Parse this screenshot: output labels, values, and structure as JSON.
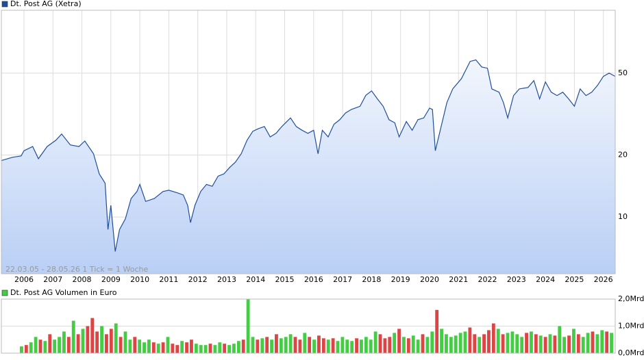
{
  "chart_data": [
    {
      "type": "line",
      "title": "Dt. Post AG (Xetra)",
      "legend_color": "#1f4e9c",
      "color": "#1f4e9c",
      "annotation": "22.03.05 - 28.05.26   1 Tick = 1 Woche",
      "log": true,
      "grid": true,
      "xlim": [
        2005.22,
        2026.41
      ],
      "xticks": [
        2006,
        2007,
        2008,
        2009,
        2010,
        2011,
        2012,
        2013,
        2014,
        2015,
        2016,
        2017,
        2018,
        2019,
        2020,
        2021,
        2022,
        2023,
        2024,
        2025,
        2026
      ],
      "ylim": [
        5.3,
        101
      ],
      "yticks": [
        10,
        20,
        50
      ],
      "x": [
        2005.22,
        2005.6,
        2005.9,
        2006.0,
        2006.3,
        2006.5,
        2006.8,
        2007.1,
        2007.3,
        2007.6,
        2007.9,
        2008.1,
        2008.4,
        2008.6,
        2008.8,
        2008.9,
        2009.0,
        2009.15,
        2009.3,
        2009.5,
        2009.7,
        2009.9,
        2010.0,
        2010.2,
        2010.5,
        2010.8,
        2011.0,
        2011.3,
        2011.5,
        2011.65,
        2011.75,
        2011.9,
        2012.1,
        2012.3,
        2012.5,
        2012.7,
        2012.9,
        2013.1,
        2013.3,
        2013.5,
        2013.7,
        2013.9,
        2014.1,
        2014.3,
        2014.5,
        2014.7,
        2014.9,
        2015.2,
        2015.4,
        2015.6,
        2015.8,
        2016.0,
        2016.15,
        2016.3,
        2016.5,
        2016.7,
        2016.9,
        2017.1,
        2017.3,
        2017.6,
        2017.8,
        2018.0,
        2018.2,
        2018.4,
        2018.6,
        2018.8,
        2018.95,
        2019.2,
        2019.4,
        2019.6,
        2019.8,
        2020.0,
        2020.1,
        2020.2,
        2020.4,
        2020.6,
        2020.8,
        2021.1,
        2021.4,
        2021.6,
        2021.8,
        2022.0,
        2022.15,
        2022.4,
        2022.55,
        2022.7,
        2022.9,
        2023.1,
        2023.4,
        2023.6,
        2023.8,
        2024.0,
        2024.2,
        2024.4,
        2024.6,
        2024.8,
        2025.0,
        2025.2,
        2025.4,
        2025.6,
        2025.8,
        2026.0,
        2026.2,
        2026.41
      ],
      "values": [
        18.8,
        19.5,
        19.8,
        21.0,
        22.0,
        19.2,
        22.0,
        23.6,
        25.3,
        22.4,
        22.0,
        23.4,
        20.3,
        16.2,
        14.6,
        8.7,
        11.4,
        6.8,
        8.7,
        9.8,
        12.3,
        13.3,
        14.4,
        11.9,
        12.3,
        13.3,
        13.5,
        13.1,
        12.8,
        11.4,
        9.4,
        11.4,
        13.3,
        14.4,
        14.1,
        15.8,
        16.2,
        17.4,
        18.5,
        20.3,
        23.6,
        26.1,
        26.9,
        27.5,
        24.5,
        25.5,
        27.5,
        30.3,
        27.5,
        26.4,
        25.5,
        26.4,
        20.3,
        26.4,
        24.5,
        28.2,
        29.7,
        32.0,
        33.3,
        34.5,
        39.0,
        41.0,
        37.5,
        34.5,
        29.7,
        28.7,
        24.5,
        29.1,
        26.4,
        29.7,
        30.3,
        33.8,
        33.3,
        21.0,
        27.5,
        36.0,
        41.9,
        47.0,
        57.0,
        58.0,
        53.6,
        52.8,
        41.9,
        40.4,
        36.0,
        30.3,
        38.9,
        41.9,
        42.6,
        46.0,
        37.5,
        45.3,
        40.4,
        38.9,
        40.4,
        37.5,
        34.5,
        41.9,
        38.9,
        40.4,
        43.6,
        48.2,
        50.0,
        48.2
      ]
    },
    {
      "type": "bar",
      "title": "Dt. Post AG Volumen in Euro",
      "legend_color": "#4c4",
      "ylim": [
        0,
        2
      ],
      "yticks": [
        {
          "value": 0,
          "label": "0,0Mrd"
        },
        {
          "value": 1,
          "label": "1,0Mrd"
        },
        {
          "value": 2,
          "label": "2,0Mrd"
        }
      ],
      "values": [
        0.25,
        0.3,
        0.4,
        0.6,
        0.5,
        0.45,
        0.7,
        0.5,
        0.6,
        0.8,
        0.6,
        1.2,
        0.7,
        0.9,
        1.0,
        1.3,
        0.8,
        1.0,
        0.7,
        0.9,
        1.1,
        0.6,
        0.8,
        0.5,
        0.6,
        0.5,
        0.4,
        0.5,
        0.4,
        0.35,
        0.4,
        0.6,
        0.35,
        0.3,
        0.45,
        0.4,
        0.5,
        0.35,
        0.3,
        0.3,
        0.35,
        0.3,
        0.4,
        0.35,
        0.3,
        0.35,
        0.45,
        0.5,
        2.0,
        0.6,
        0.5,
        0.55,
        0.6,
        0.5,
        0.7,
        0.55,
        0.6,
        0.7,
        0.6,
        0.5,
        0.75,
        0.6,
        0.5,
        0.65,
        0.55,
        0.5,
        0.55,
        0.45,
        0.6,
        0.5,
        0.45,
        0.55,
        0.5,
        0.6,
        0.5,
        0.8,
        0.7,
        0.55,
        0.6,
        0.75,
        0.9,
        0.6,
        0.55,
        0.65,
        0.5,
        0.7,
        0.6,
        0.8,
        1.6,
        0.9,
        0.7,
        0.6,
        0.65,
        0.75,
        0.8,
        0.95,
        0.7,
        0.6,
        0.7,
        0.85,
        1.1,
        0.9,
        0.7,
        0.75,
        0.8,
        0.7,
        0.6,
        0.75,
        0.8,
        0.7,
        0.65,
        0.6,
        0.7,
        0.65,
        1.0,
        0.6,
        0.65,
        0.9,
        0.7,
        0.6,
        0.75,
        0.8,
        0.7,
        0.85,
        0.8,
        0.75
      ],
      "colors": [
        "#4c4",
        "#d44",
        "#4c4",
        "#4c4",
        "#d44",
        "#4c4",
        "#d44",
        "#4c4",
        "#4c4",
        "#4c4",
        "#d44",
        "#4c4",
        "#d44",
        "#4c4",
        "#d44",
        "#d44",
        "#d44",
        "#4c4",
        "#d44",
        "#d44",
        "#4c4",
        "#d44",
        "#4c4",
        "#4c4",
        "#d44",
        "#4c4",
        "#4c4",
        "#4c4",
        "#d44",
        "#4c4",
        "#d44",
        "#4c4",
        "#d44",
        "#d44",
        "#4c4",
        "#d44",
        "#d44",
        "#4c4",
        "#4c4",
        "#4c4",
        "#d44",
        "#4c4",
        "#4c4",
        "#d44",
        "#4c4",
        "#4c4",
        "#4c4",
        "#d44",
        "#4c4",
        "#4c4",
        "#d44",
        "#4c4",
        "#d44",
        "#4c4",
        "#d44",
        "#4c4",
        "#4c4",
        "#4c4",
        "#d44",
        "#d44",
        "#4c4",
        "#d44",
        "#4c4",
        "#d44",
        "#d44",
        "#4c4",
        "#d44",
        "#4c4",
        "#4c4",
        "#4c4",
        "#4c4",
        "#d44",
        "#4c4",
        "#4c4",
        "#4c4",
        "#4c4",
        "#d44",
        "#d44",
        "#d44",
        "#4c4",
        "#d44",
        "#4c4",
        "#d44",
        "#4c4",
        "#4c4",
        "#d44",
        "#4c4",
        "#4c4",
        "#d44",
        "#4c4",
        "#4c4",
        "#4c4",
        "#4c4",
        "#4c4",
        "#4c4",
        "#d44",
        "#d44",
        "#4c4",
        "#d44",
        "#d44",
        "#d44",
        "#4c4",
        "#d44",
        "#4c4",
        "#4c4",
        "#4c4",
        "#4c4",
        "#d44",
        "#4c4",
        "#d44",
        "#4c4",
        "#d44",
        "#4c4",
        "#d44",
        "#4c4",
        "#4c4",
        "#d44",
        "#4c4",
        "#d44",
        "#4c4",
        "#4c4",
        "#d44",
        "#4c4",
        "#4c4",
        "#d44",
        "#4c4"
      ]
    }
  ]
}
